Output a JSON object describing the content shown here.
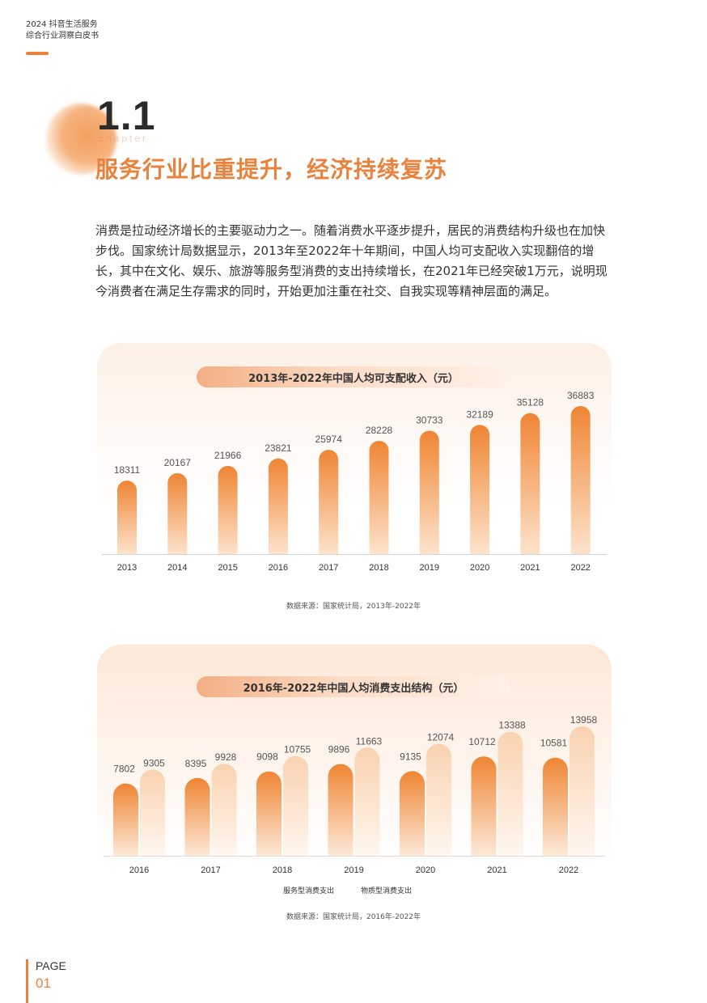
{
  "header": {
    "line1": "2024 抖音生活服务",
    "line2": "综合行业洞察白皮书"
  },
  "chapter": {
    "number": "1.1",
    "word": "chapter",
    "title": "服务行业比重提升，经济持续复苏"
  },
  "intro": "消费是拉动经济增长的主要驱动力之一。随着消费水平逐步提升，居民的消费结构升级也在加快步伐。国家统计局数据显示，2013年至2022年十年期间，中国人均可支配收入实现翻倍的增长，其中在文化、娱乐、旅游等服务型消费的支出持续增长，在2021年已经突破1万元，说明现今消费者在满足生存需求的同时，开始更加注重在社交、自我实现等精神层面的满足。",
  "chart_data": [
    {
      "type": "bar",
      "title": "2013年-2022年中国人均可支配收入（元）",
      "categories": [
        "2013",
        "2014",
        "2015",
        "2016",
        "2017",
        "2018",
        "2019",
        "2020",
        "2021",
        "2022"
      ],
      "values": [
        18311,
        20167,
        21966,
        23821,
        25974,
        28228,
        30733,
        32189,
        35128,
        36883
      ],
      "source": "数据来源：国家统计局，2013年-2022年",
      "colors": {
        "top": "#ef8533",
        "bottom": "#fde3cc"
      }
    },
    {
      "type": "bar",
      "title": "2016年-2022年中国人均消费支出结构（元）",
      "categories": [
        "2016",
        "2017",
        "2018",
        "2019",
        "2020",
        "2021",
        "2022"
      ],
      "series": [
        {
          "name": "服务型消费支出",
          "values": [
            7802,
            8395,
            9098,
            9896,
            9135,
            10712,
            10581
          ],
          "color_top": "#ef8533",
          "color_bottom": "#fde9d8"
        },
        {
          "name": "物质型消费支出",
          "values": [
            9305,
            9928,
            10755,
            11663,
            12074,
            13388,
            13958
          ],
          "color_top": "#f9d2b0",
          "color_bottom": "#fff6ee"
        }
      ],
      "source": "数据来源：国家统计局，2016年-2022年"
    }
  ],
  "footer": {
    "label": "PAGE",
    "number": "01"
  }
}
